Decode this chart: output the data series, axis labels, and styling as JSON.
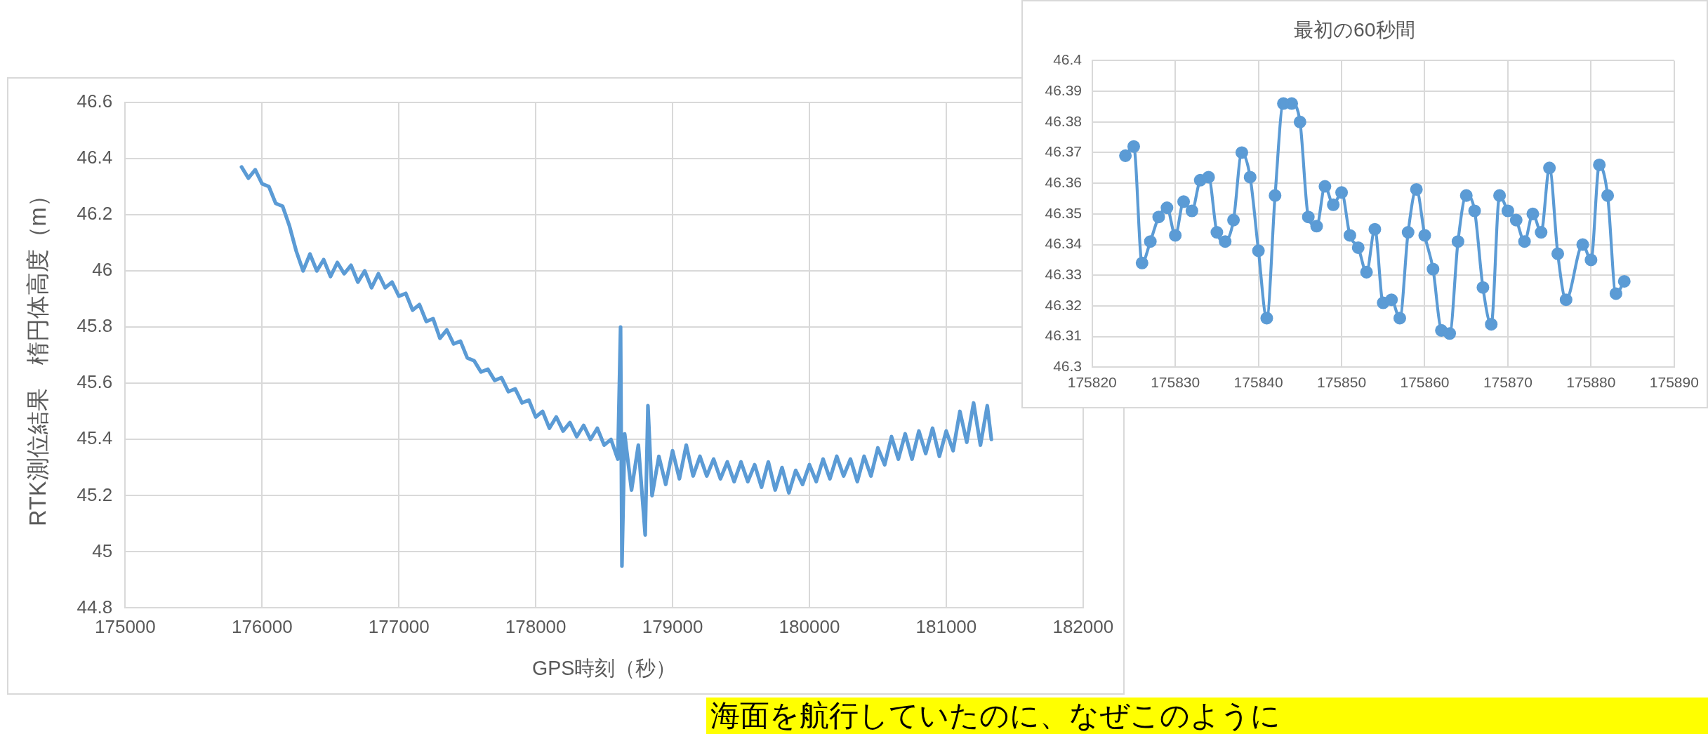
{
  "chart_data": [
    {
      "type": "line",
      "xlabel": "GPS時刻（秒）",
      "ylabel": "RTK測位結果　楕円体高度（m）",
      "color": "#5b9bd5",
      "marker": "none",
      "line_style": "solid",
      "grid": true,
      "legend": false,
      "xlim": [
        175000,
        182000
      ],
      "xticks": [
        175000,
        176000,
        177000,
        178000,
        179000,
        180000,
        181000,
        182000
      ],
      "ylim": [
        44.8,
        46.6
      ],
      "yticks": [
        {
          "value": 44.8,
          "label": "44.8"
        },
        {
          "value": 45,
          "label": "45"
        },
        {
          "value": 45.2,
          "label": "45.2"
        },
        {
          "value": 45.4,
          "label": "45.4"
        },
        {
          "value": 45.6,
          "label": "45.6"
        },
        {
          "value": 45.8,
          "label": "45.8"
        },
        {
          "value": 46,
          "label": "46"
        },
        {
          "value": 46.2,
          "label": "46.2"
        },
        {
          "value": 46.4,
          "label": "46.4"
        },
        {
          "value": 46.6,
          "label": "46.6"
        }
      ],
      "x": [
        175850,
        175900,
        175950,
        176000,
        176050,
        176100,
        176150,
        176200,
        176250,
        176300,
        176350,
        176400,
        176450,
        176500,
        176550,
        176600,
        176650,
        176700,
        176750,
        176800,
        176850,
        176900,
        176950,
        177000,
        177050,
        177100,
        177150,
        177200,
        177250,
        177300,
        177350,
        177400,
        177450,
        177500,
        177550,
        177600,
        177650,
        177700,
        177750,
        177800,
        177850,
        177900,
        177950,
        178000,
        178050,
        178100,
        178150,
        178200,
        178250,
        178300,
        178350,
        178400,
        178450,
        178500,
        178550,
        178600,
        178620,
        178630,
        178650,
        178700,
        178750,
        178800,
        178820,
        178850,
        178900,
        178950,
        179000,
        179050,
        179100,
        179150,
        179200,
        179250,
        179300,
        179350,
        179400,
        179450,
        179500,
        179550,
        179600,
        179650,
        179700,
        179750,
        179800,
        179850,
        179900,
        179950,
        180000,
        180050,
        180100,
        180150,
        180200,
        180250,
        180300,
        180350,
        180400,
        180450,
        180500,
        180550,
        180600,
        180650,
        180700,
        180750,
        180800,
        180850,
        180900,
        180950,
        181000,
        181050,
        181100,
        181150,
        181200,
        181250,
        181300,
        181330
      ],
      "values": [
        46.37,
        46.33,
        46.36,
        46.31,
        46.3,
        46.24,
        46.23,
        46.16,
        46.07,
        46.0,
        46.06,
        46.0,
        46.04,
        45.98,
        46.03,
        45.99,
        46.02,
        45.96,
        46.0,
        45.94,
        45.99,
        45.94,
        45.96,
        45.91,
        45.92,
        45.86,
        45.88,
        45.82,
        45.83,
        45.76,
        45.79,
        45.74,
        45.75,
        45.69,
        45.68,
        45.64,
        45.65,
        45.61,
        45.62,
        45.57,
        45.58,
        45.53,
        45.54,
        45.48,
        45.5,
        45.44,
        45.48,
        45.43,
        45.46,
        45.41,
        45.45,
        45.4,
        45.44,
        45.38,
        45.4,
        45.33,
        45.8,
        44.95,
        45.42,
        45.22,
        45.38,
        45.06,
        45.52,
        45.2,
        45.34,
        45.24,
        45.36,
        45.26,
        45.38,
        45.27,
        45.34,
        45.27,
        45.33,
        45.26,
        45.32,
        45.25,
        45.32,
        45.25,
        45.31,
        45.23,
        45.32,
        45.22,
        45.3,
        45.21,
        45.29,
        45.24,
        45.31,
        45.25,
        45.33,
        45.26,
        45.34,
        45.27,
        45.33,
        45.25,
        45.34,
        45.27,
        45.37,
        45.31,
        45.41,
        45.33,
        45.42,
        45.33,
        45.43,
        45.35,
        45.44,
        45.34,
        45.43,
        45.36,
        45.5,
        45.39,
        45.53,
        45.38,
        45.52,
        45.4
      ],
      "annotations": [
        "海面を航行していたのに、なぜこのように"
      ]
    },
    {
      "type": "line",
      "title": "最初の60秒間",
      "color": "#5b9bd5",
      "marker": "circle",
      "line_style": "solid",
      "grid": true,
      "legend": false,
      "xlim": [
        175820,
        175890
      ],
      "xticks": [
        175820,
        175830,
        175840,
        175850,
        175860,
        175870,
        175880,
        175890
      ],
      "ylim": [
        46.3,
        46.4
      ],
      "yticks": [
        46.3,
        46.31,
        46.32,
        46.33,
        46.34,
        46.35,
        46.36,
        46.37,
        46.38,
        46.39,
        46.4
      ],
      "x": [
        175824,
        175825,
        175826,
        175827,
        175828,
        175829,
        175830,
        175831,
        175832,
        175833,
        175834,
        175835,
        175836,
        175837,
        175838,
        175839,
        175840,
        175841,
        175842,
        175843,
        175844,
        175845,
        175846,
        175847,
        175848,
        175849,
        175850,
        175851,
        175852,
        175853,
        175854,
        175855,
        175856,
        175857,
        175858,
        175859,
        175860,
        175861,
        175862,
        175863,
        175864,
        175865,
        175866,
        175867,
        175868,
        175869,
        175870,
        175871,
        175872,
        175873,
        175874,
        175875,
        175876,
        175877,
        175879,
        175880,
        175881,
        175882,
        175883,
        175884
      ],
      "values": [
        46.369,
        46.372,
        46.334,
        46.341,
        46.349,
        46.352,
        46.343,
        46.354,
        46.351,
        46.361,
        46.362,
        46.344,
        46.341,
        46.348,
        46.37,
        46.362,
        46.338,
        46.316,
        46.356,
        46.386,
        46.386,
        46.38,
        46.349,
        46.346,
        46.359,
        46.353,
        46.357,
        46.343,
        46.339,
        46.331,
        46.345,
        46.321,
        46.322,
        46.316,
        46.344,
        46.358,
        46.343,
        46.332,
        46.312,
        46.311,
        46.341,
        46.356,
        46.351,
        46.326,
        46.314,
        46.356,
        46.351,
        46.348,
        46.341,
        46.35,
        46.344,
        46.365,
        46.337,
        46.322,
        46.34,
        46.335,
        46.366,
        46.356,
        46.324,
        46.328
      ]
    }
  ]
}
